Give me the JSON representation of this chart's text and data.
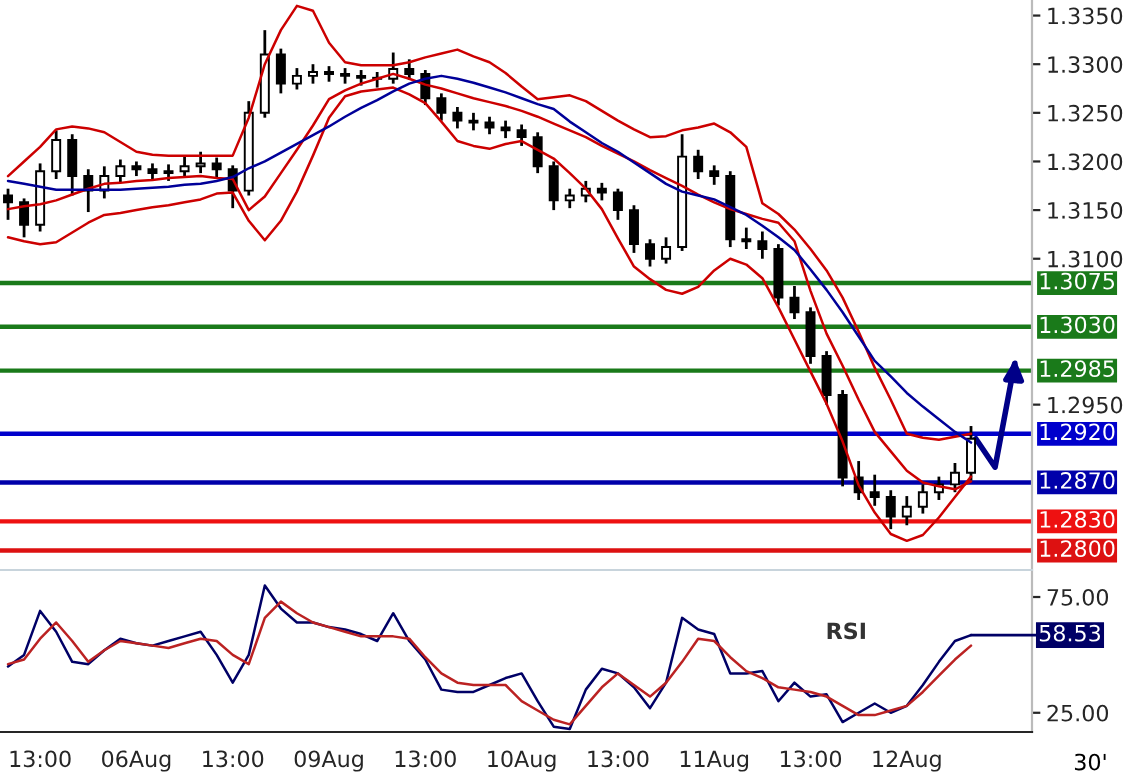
{
  "chart_data": [
    {
      "type": "candlestick",
      "categories": [
        null,
        null,
        null,
        null,
        null,
        null,
        null,
        null,
        null,
        null,
        null,
        null,
        null,
        null,
        null,
        null,
        null,
        null,
        null,
        null,
        null,
        null,
        null,
        null,
        null,
        null,
        null,
        null,
        null,
        null,
        null,
        null,
        null,
        null,
        null,
        null,
        null,
        null,
        null,
        null,
        null,
        null,
        null,
        null,
        null,
        null,
        null,
        null,
        null,
        null,
        null,
        null,
        null,
        null,
        null,
        null,
        null,
        null,
        null,
        null,
        null
      ],
      "ohlc": [
        [
          1.3165,
          1.3172,
          1.314,
          1.3158
        ],
        [
          1.3158,
          1.3162,
          1.3122,
          1.3135
        ],
        [
          1.3135,
          1.3198,
          1.3128,
          1.319
        ],
        [
          1.319,
          1.3232,
          1.3182,
          1.3222
        ],
        [
          1.3222,
          1.3228,
          1.3165,
          1.3185
        ],
        [
          1.3185,
          1.3192,
          1.3148,
          1.317
        ],
        [
          1.317,
          1.3195,
          1.3162,
          1.3185
        ],
        [
          1.3185,
          1.3202,
          1.3178,
          1.3195
        ],
        [
          1.3195,
          1.32,
          1.3185,
          1.3192
        ],
        [
          1.3192,
          1.3198,
          1.3182,
          1.3188
        ],
        [
          1.3188,
          1.3197,
          1.318,
          1.319
        ],
        [
          1.319,
          1.3205,
          1.3184,
          1.3195
        ],
        [
          1.3195,
          1.321,
          1.3188,
          1.3198
        ],
        [
          1.3198,
          1.3204,
          1.3182,
          1.3192
        ],
        [
          1.3192,
          1.3196,
          1.3152,
          1.317
        ],
        [
          1.317,
          1.3262,
          1.3165,
          1.325
        ],
        [
          1.325,
          1.3335,
          1.3245,
          1.331
        ],
        [
          1.331,
          1.3316,
          1.327,
          1.328
        ],
        [
          1.328,
          1.3296,
          1.3274,
          1.3288
        ],
        [
          1.3288,
          1.33,
          1.328,
          1.3292
        ],
        [
          1.3292,
          1.3298,
          1.3282,
          1.329
        ],
        [
          1.329,
          1.3296,
          1.328,
          1.3288
        ],
        [
          1.3288,
          1.3294,
          1.3278,
          1.3286
        ],
        [
          1.3286,
          1.3292,
          1.3276,
          1.3285
        ],
        [
          1.3285,
          1.3312,
          1.328,
          1.3295
        ],
        [
          1.3295,
          1.3305,
          1.3284,
          1.329
        ],
        [
          1.329,
          1.3294,
          1.3258,
          1.3265
        ],
        [
          1.3265,
          1.327,
          1.3242,
          1.325
        ],
        [
          1.325,
          1.3256,
          1.3234,
          1.3242
        ],
        [
          1.3242,
          1.325,
          1.3232,
          1.324
        ],
        [
          1.324,
          1.3246,
          1.3228,
          1.3235
        ],
        [
          1.3235,
          1.3242,
          1.3224,
          1.3232
        ],
        [
          1.3232,
          1.3238,
          1.3216,
          1.3225
        ],
        [
          1.3225,
          1.323,
          1.3188,
          1.3195
        ],
        [
          1.3195,
          1.32,
          1.315,
          1.316
        ],
        [
          1.316,
          1.3172,
          1.3152,
          1.3165
        ],
        [
          1.3165,
          1.318,
          1.3158,
          1.3172
        ],
        [
          1.3172,
          1.3178,
          1.316,
          1.3168
        ],
        [
          1.3168,
          1.3172,
          1.314,
          1.315
        ],
        [
          1.315,
          1.3155,
          1.3106,
          1.3115
        ],
        [
          1.3115,
          1.312,
          1.3092,
          1.31
        ],
        [
          1.31,
          1.3122,
          1.3095,
          1.3112
        ],
        [
          1.3112,
          1.3228,
          1.3108,
          1.3205
        ],
        [
          1.3205,
          1.3212,
          1.3182,
          1.319
        ],
        [
          1.319,
          1.3196,
          1.3176,
          1.3185
        ],
        [
          1.3185,
          1.319,
          1.3112,
          1.312
        ],
        [
          1.312,
          1.3132,
          1.311,
          1.3118
        ],
        [
          1.3118,
          1.3128,
          1.31,
          1.311
        ],
        [
          1.311,
          1.3115,
          1.3052,
          1.306
        ],
        [
          1.306,
          1.3072,
          1.3038,
          1.3045
        ],
        [
          1.3045,
          1.305,
          1.2992,
          1.3
        ],
        [
          1.3,
          1.3005,
          1.295,
          1.296
        ],
        [
          1.296,
          1.2965,
          1.2866,
          1.2875
        ],
        [
          1.2875,
          1.2892,
          1.2852,
          1.286
        ],
        [
          1.286,
          1.2878,
          1.2846,
          1.2855
        ],
        [
          1.2855,
          1.2862,
          1.2822,
          1.2835
        ],
        [
          1.2835,
          1.2856,
          1.2826,
          1.2845
        ],
        [
          1.2845,
          1.2868,
          1.2838,
          1.286
        ],
        [
          1.286,
          1.2876,
          1.2852,
          1.2868
        ],
        [
          1.2868,
          1.289,
          1.286,
          1.288
        ],
        [
          1.288,
          1.2928,
          1.2872,
          1.2915
        ]
      ],
      "color": "#000000",
      "series": [
        {
          "type": "line",
          "color": "#cc0000",
          "values": [
            1.3185,
            1.32,
            1.3215,
            1.3233,
            1.3236,
            1.3234,
            1.323,
            1.322,
            1.321,
            1.3207,
            1.3206,
            1.3206,
            1.3206,
            1.3206,
            1.3206,
            1.3245,
            1.33,
            1.3335,
            1.336,
            1.3355,
            1.3322,
            1.3302,
            1.3299,
            1.3299,
            1.3299,
            1.3302,
            1.3307,
            1.3311,
            1.3315,
            1.3308,
            1.3302,
            1.3291,
            1.3277,
            1.3264,
            1.3266,
            1.3268,
            1.3262,
            1.3252,
            1.3242,
            1.3233,
            1.3225,
            1.3226,
            1.3232,
            1.3235,
            1.3239,
            1.323,
            1.3215,
            1.3157,
            1.3146,
            1.313,
            1.311,
            1.3088,
            1.306,
            1.3025,
            1.2988,
            1.2955,
            1.292,
            1.2916,
            1.2914,
            1.2917,
            1.292
          ]
        },
        {
          "type": "line",
          "color": "#cc0000",
          "values": [
            1.3122,
            1.3118,
            1.3115,
            1.3117,
            1.3127,
            1.3137,
            1.3145,
            1.3147,
            1.315,
            1.3153,
            1.3155,
            1.3158,
            1.3161,
            1.3167,
            1.3168,
            1.3139,
            1.3119,
            1.3139,
            1.3169,
            1.3206,
            1.3245,
            1.3267,
            1.3272,
            1.3274,
            1.3276,
            1.3269,
            1.326,
            1.3241,
            1.3221,
            1.3216,
            1.3213,
            1.3218,
            1.3221,
            1.3212,
            1.3203,
            1.3188,
            1.3172,
            1.3151,
            1.3121,
            1.3092,
            1.3079,
            1.3068,
            1.3064,
            1.3071,
            1.3088,
            1.31,
            1.3094,
            1.308,
            1.305,
            1.3017,
            1.2984,
            1.2951,
            1.2912,
            1.2867,
            1.2839,
            1.2817,
            1.281,
            1.2816,
            1.2834,
            1.2855,
            1.2876
          ]
        },
        {
          "type": "line",
          "color": "#cc0000",
          "values": [
            1.3151,
            1.3154,
            1.3156,
            1.316,
            1.3166,
            1.3172,
            1.3177,
            1.3178,
            1.318,
            1.3181,
            1.3183,
            1.3184,
            1.3185,
            1.3183,
            1.3182,
            1.315,
            1.3164,
            1.3188,
            1.3212,
            1.3237,
            1.3264,
            1.3273,
            1.328,
            1.3285,
            1.329,
            1.3285,
            1.3279,
            1.3275,
            1.327,
            1.3265,
            1.3261,
            1.3257,
            1.3252,
            1.3246,
            1.3239,
            1.3232,
            1.3225,
            1.3216,
            1.3208,
            1.32,
            1.3191,
            1.3183,
            1.3175,
            1.3166,
            1.3158,
            1.3151,
            1.3146,
            1.3141,
            1.3137,
            1.3118,
            1.3067,
            1.3023,
            1.299,
            1.2955,
            1.2922,
            1.2902,
            1.2882,
            1.287,
            1.2866,
            1.2863,
            1.2871
          ]
        },
        {
          "type": "line",
          "color": "#000099",
          "values": [
            1.318,
            1.3177,
            1.3174,
            1.3171,
            1.3171,
            1.3171,
            1.3171,
            1.3171,
            1.3172,
            1.3173,
            1.3174,
            1.3176,
            1.3177,
            1.318,
            1.3184,
            1.3193,
            1.32,
            1.3209,
            1.3218,
            1.3227,
            1.3236,
            1.3246,
            1.3255,
            1.3263,
            1.3272,
            1.328,
            1.3285,
            1.3288,
            1.3285,
            1.3281,
            1.3276,
            1.3271,
            1.3265,
            1.3259,
            1.3254,
            1.3241,
            1.323,
            1.3219,
            1.321,
            1.3199,
            1.3188,
            1.3177,
            1.3169,
            1.3165,
            1.3161,
            1.3153,
            1.3145,
            1.3134,
            1.3122,
            1.3109,
            1.3089,
            1.3068,
            1.3045,
            1.302,
            1.2995,
            1.2979,
            1.2962,
            1.2948,
            1.2935,
            1.2922,
            1.2911
          ]
        }
      ],
      "ref_lines": [
        {
          "axis": "y",
          "value": 1.3075,
          "label": "1.3075",
          "color": "#1a7a1a"
        },
        {
          "axis": "y",
          "value": 1.303,
          "label": "1.3030",
          "color": "#1a7a1a"
        },
        {
          "axis": "y",
          "value": 1.2985,
          "label": "1.2985",
          "color": "#1a7a1a"
        },
        {
          "axis": "y",
          "value": 1.292,
          "label": "1.2920",
          "color": "#0000cc"
        },
        {
          "axis": "y",
          "value": 1.287,
          "label": "1.2870",
          "color": "#0000aa"
        },
        {
          "axis": "y",
          "value": 1.283,
          "label": "1.2830",
          "color": "#ee1111"
        },
        {
          "axis": "y",
          "value": 1.28,
          "label": "1.2800",
          "color": "#dd1111"
        }
      ],
      "ylim": [
        1.278,
        1.3366
      ],
      "yticks": [
        {
          "value": 1.335,
          "label": "1.3350"
        },
        {
          "value": 1.33,
          "label": "1.3300"
        },
        {
          "value": 1.325,
          "label": "1.3250"
        },
        {
          "value": 1.32,
          "label": "1.3200"
        },
        {
          "value": 1.315,
          "label": "1.3150"
        },
        {
          "value": 1.31,
          "label": "1.3100"
        },
        {
          "value": 1.295,
          "label": "1.2950"
        }
      ],
      "tick_labels": "y"
    },
    {
      "type": "line",
      "categories": [
        null,
        null,
        "13:00",
        null,
        null,
        null,
        null,
        null,
        "06Aug",
        null,
        null,
        null,
        null,
        null,
        "13:00",
        null,
        null,
        null,
        null,
        null,
        "09Aug",
        null,
        null,
        null,
        null,
        null,
        "13:00",
        null,
        null,
        null,
        null,
        null,
        "10Aug",
        null,
        null,
        null,
        null,
        null,
        "13:00",
        null,
        null,
        null,
        null,
        null,
        "11Aug",
        null,
        null,
        null,
        null,
        null,
        "13:00",
        null,
        null,
        null,
        null,
        null,
        "12Aug",
        null,
        null,
        null,
        null
      ],
      "series": [
        {
          "color": "#000066",
          "values": [
            45,
            50,
            69,
            60,
            47,
            46,
            52,
            57,
            55,
            54,
            56,
            58,
            60,
            50,
            38,
            50,
            80,
            70,
            64,
            64,
            62,
            61,
            59,
            56,
            68,
            56,
            48,
            35,
            34,
            34,
            37,
            40,
            42,
            30,
            19,
            18,
            35,
            44,
            42,
            36,
            27,
            38,
            66,
            61,
            59,
            42,
            42,
            43,
            30,
            38,
            32,
            33,
            21,
            25,
            29,
            25,
            28,
            37,
            47,
            56,
            58.53
          ],
          "value_labels": [
            null,
            null,
            null,
            null,
            null,
            null,
            null,
            null,
            null,
            null,
            null,
            null,
            null,
            null,
            null,
            null,
            null,
            null,
            null,
            null,
            null,
            null,
            null,
            null,
            null,
            null,
            null,
            null,
            null,
            null,
            null,
            null,
            null,
            null,
            null,
            null,
            null,
            null,
            null,
            null,
            null,
            null,
            null,
            null,
            null,
            null,
            null,
            null,
            null,
            null,
            null,
            null,
            null,
            null,
            null,
            null,
            null,
            null,
            null,
            null,
            "58.53"
          ]
        },
        {
          "color": "#bb2222",
          "values": [
            46,
            48,
            57,
            64,
            56,
            47,
            52,
            56,
            55,
            54,
            53,
            55,
            57,
            56,
            50,
            46,
            66,
            73,
            68,
            64,
            62,
            60,
            58,
            58,
            58,
            57,
            49,
            42,
            38,
            37,
            37,
            37,
            30,
            26,
            22,
            20,
            28,
            36,
            42,
            37,
            32,
            38,
            47,
            57,
            56,
            49,
            43,
            40,
            36,
            35,
            34,
            32,
            28,
            24,
            24,
            26,
            28,
            34,
            41,
            48,
            54
          ]
        }
      ],
      "ylim": [
        16.7,
        85.8
      ],
      "yticks": [
        {
          "value": 75,
          "label": "75.00"
        },
        {
          "value": 25,
          "label": "25.00"
        }
      ],
      "annotations": [
        "RSI",
        "30'"
      ]
    }
  ]
}
